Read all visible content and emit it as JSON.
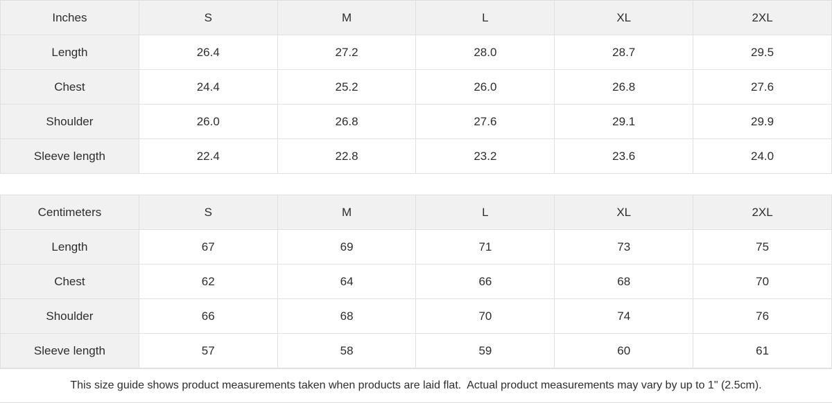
{
  "colors": {
    "header_bg": "#f1f1f1",
    "cell_bg": "#ffffff",
    "border": "#e0e0e0",
    "text": "#2d2d2d"
  },
  "tables": [
    {
      "unit_label": "Inches",
      "sizes": [
        "S",
        "M",
        "L",
        "XL",
        "2XL"
      ],
      "rows": [
        {
          "label": "Length",
          "values": [
            "26.4",
            "27.2",
            "28.0",
            "28.7",
            "29.5"
          ]
        },
        {
          "label": "Chest",
          "values": [
            "24.4",
            "25.2",
            "26.0",
            "26.8",
            "27.6"
          ]
        },
        {
          "label": "Shoulder",
          "values": [
            "26.0",
            "26.8",
            "27.6",
            "29.1",
            "29.9"
          ]
        },
        {
          "label": "Sleeve length",
          "values": [
            "22.4",
            "22.8",
            "23.2",
            "23.6",
            "24.0"
          ]
        }
      ]
    },
    {
      "unit_label": "Centimeters",
      "sizes": [
        "S",
        "M",
        "L",
        "XL",
        "2XL"
      ],
      "rows": [
        {
          "label": "Length",
          "values": [
            "67",
            "69",
            "71",
            "73",
            "75"
          ]
        },
        {
          "label": "Chest",
          "values": [
            "62",
            "64",
            "66",
            "68",
            "70"
          ]
        },
        {
          "label": "Shoulder",
          "values": [
            "66",
            "68",
            "70",
            "74",
            "76"
          ]
        },
        {
          "label": "Sleeve length",
          "values": [
            "57",
            "58",
            "59",
            "60",
            "61"
          ]
        }
      ]
    }
  ],
  "footer": {
    "note": "This size guide shows product measurements taken when products are laid flat.  Actual product measurements may vary by up to 1\" (2.5cm)."
  }
}
